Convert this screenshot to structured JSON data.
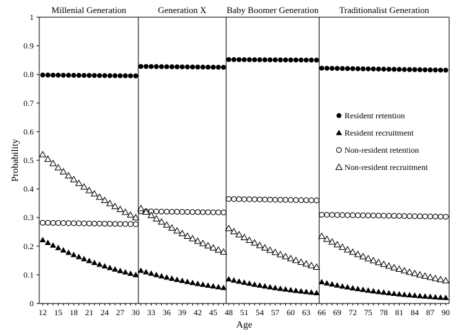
{
  "chart_data": {
    "type": "scatter",
    "xlabel": "Age",
    "ylabel": "Probability",
    "ylim": [
      0,
      1
    ],
    "xlim": [
      12,
      90
    ],
    "y_ticks": [
      "0",
      "0.1",
      "0.2",
      "0.3",
      "0.4",
      "0.5",
      "0.6",
      "0.7",
      "0.8",
      "0.9",
      "1"
    ],
    "x_ticks": [
      "12",
      "15",
      "18",
      "21",
      "24",
      "27",
      "30",
      "33",
      "36",
      "39",
      "42",
      "45",
      "48",
      "51",
      "54",
      "57",
      "60",
      "63",
      "66",
      "69",
      "72",
      "75",
      "78",
      "81",
      "84",
      "87",
      "90"
    ],
    "generations": [
      {
        "label": "Millenial  Generation",
        "age_start": 12,
        "age_end": 30
      },
      {
        "label": "Generation X",
        "age_start": 31,
        "age_end": 47
      },
      {
        "label": "Baby Boomer Generation",
        "age_start": 48,
        "age_end": 65
      },
      {
        "label": "Traditionalist  Generation",
        "age_start": 66,
        "age_end": 90
      }
    ],
    "legend_position": "right-middle",
    "series": [
      {
        "name": "Resident retention",
        "marker": "filled-circle",
        "segments": [
          {
            "ages": [
              12,
              30
            ],
            "start": 0.798,
            "end": 0.795
          },
          {
            "ages": [
              31,
              47
            ],
            "start": 0.828,
            "end": 0.825
          },
          {
            "ages": [
              48,
              65
            ],
            "start": 0.852,
            "end": 0.85
          },
          {
            "ages": [
              66,
              90
            ],
            "start": 0.822,
            "end": 0.815
          }
        ]
      },
      {
        "name": "Resident recruitment",
        "marker": "filled-triangle",
        "segments": [
          {
            "ages": [
              12,
              30
            ],
            "start": 0.222,
            "end": 0.1
          },
          {
            "ages": [
              31,
              47
            ],
            "start": 0.115,
            "end": 0.055
          },
          {
            "ages": [
              48,
              65
            ],
            "start": 0.085,
            "end": 0.037
          },
          {
            "ages": [
              66,
              90
            ],
            "start": 0.075,
            "end": 0.02
          }
        ]
      },
      {
        "name": "Non-resident retention",
        "marker": "open-circle",
        "segments": [
          {
            "ages": [
              12,
              30
            ],
            "start": 0.282,
            "end": 0.277
          },
          {
            "ages": [
              31,
              47
            ],
            "start": 0.322,
            "end": 0.318
          },
          {
            "ages": [
              48,
              65
            ],
            "start": 0.365,
            "end": 0.36
          },
          {
            "ages": [
              66,
              90
            ],
            "start": 0.31,
            "end": 0.303
          }
        ]
      },
      {
        "name": "Non-resident recruitment",
        "marker": "open-triangle",
        "segments": [
          {
            "ages": [
              12,
              30
            ],
            "start": 0.52,
            "end": 0.3
          },
          {
            "ages": [
              31,
              47
            ],
            "start": 0.332,
            "end": 0.18
          },
          {
            "ages": [
              48,
              65
            ],
            "start": 0.262,
            "end": 0.127
          },
          {
            "ages": [
              66,
              90
            ],
            "start": 0.235,
            "end": 0.08
          }
        ]
      }
    ]
  }
}
